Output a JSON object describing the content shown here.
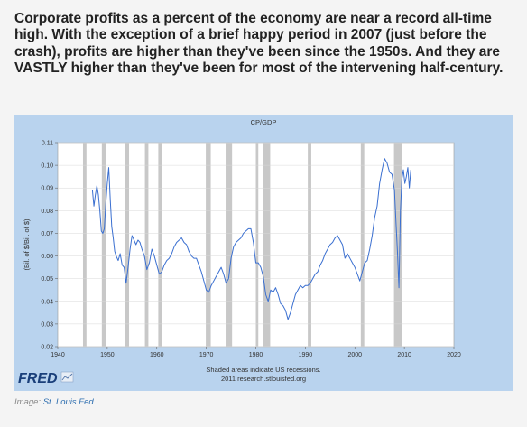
{
  "headline": "Corporate profits as a percent of the economy are near a record all-time high. With the exception of a brief happy period in 2007 (just before the crash), profits are higher than they've been since the 1950s. And they are VASTLY higher than they've been for most of the intervening half-century.",
  "caption": {
    "prefix": "Image: ",
    "source": "St. Louis Fed"
  },
  "fred": {
    "logo_text": "FRED",
    "note_line1": "Shaded areas indicate US recessions.",
    "note_line2": "2011 research.stlouisfed.org"
  },
  "colors": {
    "frame_bg": "#b9d3ee",
    "plot_bg": "#ffffff",
    "line": "#3a6fd0",
    "recession": "#c8c8c8",
    "grid": "#d8d8d8"
  },
  "chart_data": {
    "type": "line",
    "title": "CP/GDP",
    "ylabel": "(Bil. of $/Bil. of $)",
    "xlabel": "",
    "xlim": [
      1940,
      2020
    ],
    "ylim": [
      0.02,
      0.11
    ],
    "x_ticks": [
      1940,
      1950,
      1960,
      1970,
      1980,
      1990,
      2000,
      2010,
      2020
    ],
    "y_ticks": [
      "0.02",
      "0.03",
      "0.04",
      "0.05",
      "0.06",
      "0.07",
      "0.08",
      "0.09",
      "0.10",
      "0.11"
    ],
    "grid": true,
    "recessions": [
      [
        1945.1,
        1945.8
      ],
      [
        1948.9,
        1949.8
      ],
      [
        1953.5,
        1954.4
      ],
      [
        1957.6,
        1958.3
      ],
      [
        1960.3,
        1961.1
      ],
      [
        1969.9,
        1970.9
      ],
      [
        1973.9,
        1975.2
      ],
      [
        1980.0,
        1980.5
      ],
      [
        1981.5,
        1982.9
      ],
      [
        1990.5,
        1991.2
      ],
      [
        2001.2,
        2001.9
      ],
      [
        2007.9,
        2009.5
      ]
    ],
    "series": [
      {
        "x": [
          1947.0,
          1947.3,
          1947.6,
          1947.9,
          1948.2,
          1948.5,
          1948.8,
          1949.1,
          1949.4,
          1949.7,
          1950.0,
          1950.3,
          1950.6,
          1950.9,
          1951.2,
          1951.5,
          1951.8,
          1952.2,
          1952.6,
          1953.0,
          1953.4,
          1953.8,
          1954.2,
          1954.6,
          1955.0,
          1955.4,
          1955.8,
          1956.2,
          1956.6,
          1957.0,
          1957.5,
          1958.0,
          1958.5,
          1959.0,
          1959.5,
          1960.0,
          1960.5,
          1961.0,
          1961.5,
          1962.0,
          1962.5,
          1963.0,
          1963.5,
          1964.0,
          1964.5,
          1965.0,
          1965.5,
          1966.0,
          1966.5,
          1967.0,
          1967.5,
          1968.0,
          1968.5,
          1969.0,
          1969.5,
          1970.0,
          1970.5,
          1971.0,
          1971.5,
          1972.0,
          1972.5,
          1973.0,
          1973.5,
          1974.0,
          1974.5,
          1975.0,
          1975.5,
          1976.0,
          1976.5,
          1977.0,
          1977.5,
          1978.0,
          1978.5,
          1979.0,
          1979.5,
          1980.0,
          1980.5,
          1981.0,
          1981.5,
          1982.0,
          1982.5,
          1983.0,
          1983.5,
          1984.0,
          1984.5,
          1985.0,
          1985.5,
          1986.0,
          1986.5,
          1987.0,
          1987.5,
          1988.0,
          1988.5,
          1989.0,
          1989.5,
          1990.0,
          1990.5,
          1991.0,
          1991.5,
          1992.0,
          1992.5,
          1993.0,
          1993.5,
          1994.0,
          1994.5,
          1995.0,
          1995.5,
          1996.0,
          1996.5,
          1997.0,
          1997.5,
          1998.0,
          1998.5,
          1999.0,
          1999.5,
          2000.0,
          2000.5,
          2001.0,
          2001.5,
          2002.0,
          2002.5,
          2003.0,
          2003.5,
          2004.0,
          2004.5,
          2005.0,
          2005.5,
          2006.0,
          2006.5,
          2007.0,
          2007.5,
          2008.0,
          2008.3,
          2008.6,
          2008.9,
          2009.2,
          2009.5,
          2009.8,
          2010.1,
          2010.4,
          2010.7,
          2011.0,
          2011.3
        ],
        "y": [
          0.089,
          0.082,
          0.087,
          0.091,
          0.087,
          0.08,
          0.071,
          0.07,
          0.072,
          0.083,
          0.092,
          0.099,
          0.085,
          0.073,
          0.068,
          0.062,
          0.06,
          0.058,
          0.061,
          0.056,
          0.055,
          0.048,
          0.055,
          0.063,
          0.069,
          0.067,
          0.065,
          0.067,
          0.066,
          0.063,
          0.06,
          0.054,
          0.057,
          0.063,
          0.06,
          0.056,
          0.052,
          0.053,
          0.056,
          0.058,
          0.059,
          0.061,
          0.064,
          0.066,
          0.067,
          0.068,
          0.066,
          0.065,
          0.062,
          0.06,
          0.059,
          0.059,
          0.056,
          0.053,
          0.049,
          0.045,
          0.044,
          0.047,
          0.049,
          0.051,
          0.053,
          0.055,
          0.052,
          0.048,
          0.05,
          0.059,
          0.064,
          0.066,
          0.067,
          0.068,
          0.07,
          0.071,
          0.072,
          0.072,
          0.066,
          0.057,
          0.057,
          0.055,
          0.051,
          0.043,
          0.04,
          0.045,
          0.044,
          0.046,
          0.043,
          0.039,
          0.038,
          0.036,
          0.032,
          0.035,
          0.039,
          0.043,
          0.045,
          0.047,
          0.046,
          0.047,
          0.047,
          0.048,
          0.05,
          0.052,
          0.053,
          0.056,
          0.058,
          0.061,
          0.063,
          0.065,
          0.066,
          0.068,
          0.069,
          0.067,
          0.065,
          0.059,
          0.061,
          0.059,
          0.057,
          0.055,
          0.052,
          0.049,
          0.053,
          0.057,
          0.058,
          0.063,
          0.069,
          0.077,
          0.082,
          0.092,
          0.098,
          0.103,
          0.101,
          0.097,
          0.096,
          0.089,
          0.075,
          0.062,
          0.046,
          0.08,
          0.094,
          0.098,
          0.092,
          0.095,
          0.099,
          0.09,
          0.098
        ]
      }
    ]
  }
}
